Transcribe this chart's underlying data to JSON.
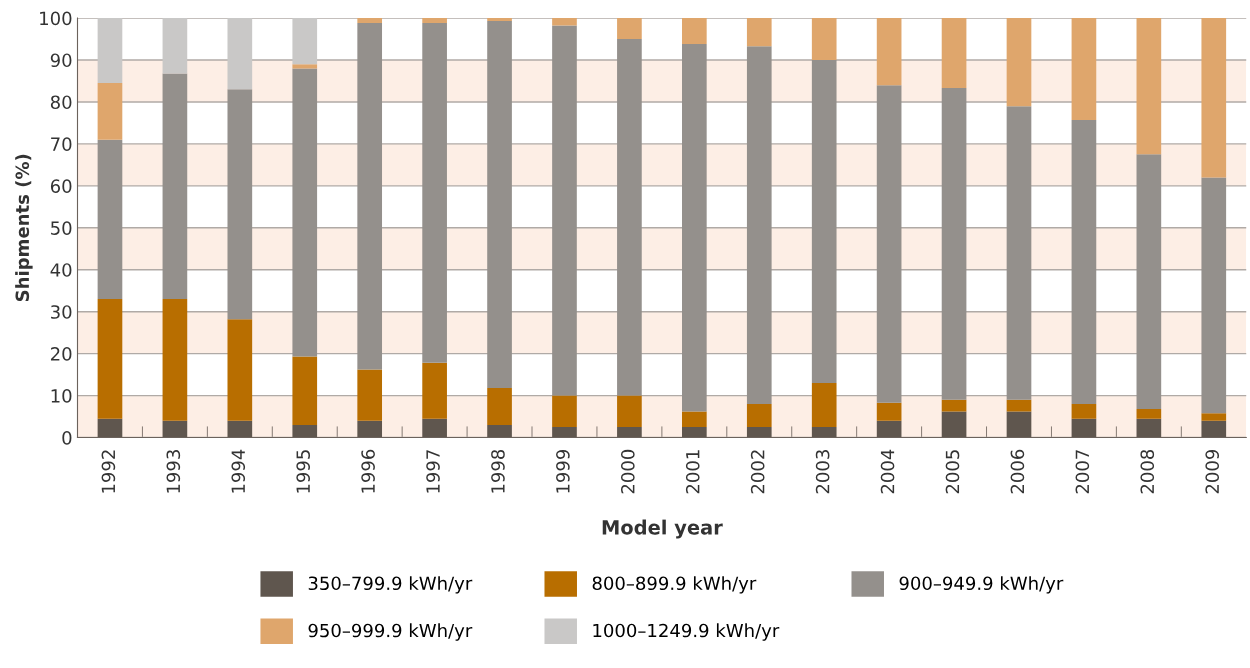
{
  "chart_data": {
    "type": "bar",
    "stacked": true,
    "xlabel": "Model year",
    "ylabel": "Shipments (%)",
    "categories": [
      "1992",
      "1993",
      "1994",
      "1995",
      "1996",
      "1997",
      "1998",
      "1999",
      "2000",
      "2001",
      "2002",
      "2003",
      "2004",
      "2005",
      "2006",
      "2007",
      "2008",
      "2009"
    ],
    "series": [
      {
        "name": "350–799.9 kWh/yr",
        "color": "#5f564e",
        "values": [
          4.5,
          4,
          4,
          3,
          4,
          4.5,
          3,
          2.5,
          2.5,
          2.5,
          2.5,
          2.5,
          4,
          6.2,
          6.2,
          4.5,
          4.5,
          4
        ]
      },
      {
        "name": "800–899.9 kWh/yr",
        "color": "#b86e00",
        "values": [
          28.5,
          29,
          24.2,
          16.3,
          12.2,
          13.3,
          8.8,
          7.5,
          7.5,
          3.7,
          5.5,
          10.5,
          4.3,
          2.8,
          2.8,
          3.5,
          2.3,
          1.8
        ]
      },
      {
        "name": "900–949.9 kWh/yr",
        "color": "#94908c",
        "values": [
          38,
          53.8,
          54.8,
          68.7,
          82.6,
          81,
          87.5,
          88.2,
          85,
          87.6,
          85.3,
          77,
          75.7,
          74.3,
          70,
          67.7,
          60.7,
          56.2
        ]
      },
      {
        "name": "950–999.9 kWh/yr",
        "color": "#dfa66c",
        "values": [
          13.5,
          0,
          0,
          1,
          1.2,
          1.2,
          0.7,
          1.8,
          5,
          6.2,
          6.7,
          10,
          16,
          16.7,
          21,
          24.3,
          32.5,
          38
        ]
      },
      {
        "name": "1000–1249.9 kWh/yr",
        "color": "#c9c8c7",
        "values": [
          15.5,
          13.2,
          17,
          11,
          0,
          0,
          0,
          0,
          0,
          0,
          0,
          0,
          0,
          0,
          0,
          0,
          0,
          0
        ]
      }
    ],
    "ylim": [
      0,
      100
    ],
    "yticks": [
      0,
      10,
      20,
      30,
      40,
      50,
      60,
      70,
      80,
      90,
      100
    ],
    "grid": "y",
    "legend": "bottom",
    "bands": [
      {
        "axis": "y",
        "from": 0,
        "to": 10,
        "color": "#fdeee5"
      },
      {
        "axis": "y",
        "from": 20,
        "to": 30,
        "color": "#fdeee5"
      },
      {
        "axis": "y",
        "from": 40,
        "to": 50,
        "color": "#fdeee5"
      },
      {
        "axis": "y",
        "from": 60,
        "to": 70,
        "color": "#fdeee5"
      },
      {
        "axis": "y",
        "from": 80,
        "to": 90,
        "color": "#fdeee5"
      }
    ]
  }
}
